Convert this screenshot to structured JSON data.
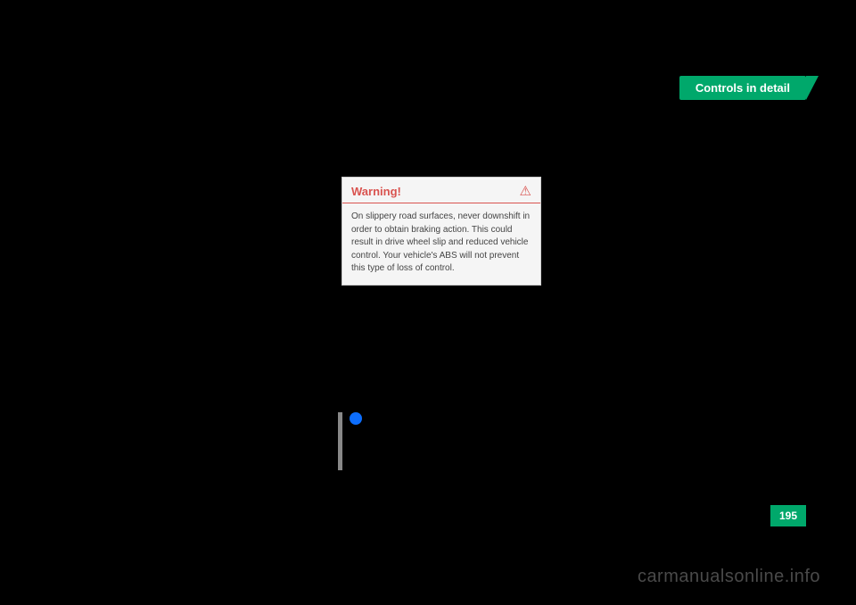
{
  "header": {
    "tab_label": "Controls in detail"
  },
  "warning": {
    "title": "Warning!",
    "icon": "⚠",
    "body": "On slippery road surfaces, never downshift in order to obtain braking action. This could result in drive wheel slip and reduced vehicle control. Your vehicle's ABS will not prevent this type of loss of control."
  },
  "page_number": "195",
  "watermark": "carmanualsonline.info",
  "colors": {
    "background": "#000000",
    "accent_green": "#00a86b",
    "warning_red": "#d9534f",
    "box_bg": "#f5f5f5",
    "watermark_gray": "#4a4a4a",
    "info_blue": "#0d6efd"
  }
}
